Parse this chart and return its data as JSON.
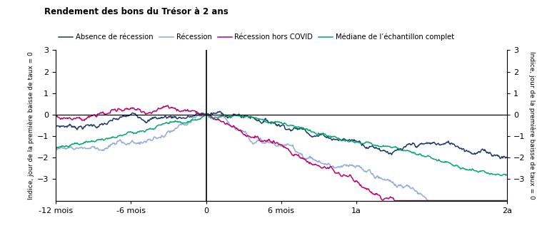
{
  "title": "Rendement des bons du Trésor à 2 ans",
  "ylabel_left": "Indice, jour de la première baisse de taux = 0",
  "ylabel_right": "Indice, jour de la première baisse de taux = 0",
  "xtick_labels": [
    "-12 mois",
    "-6 mois",
    "0",
    "6 mois",
    "1a",
    "2a"
  ],
  "xtick_positions": [
    -252,
    -126,
    0,
    126,
    252,
    504
  ],
  "ylim": [
    -4,
    3
  ],
  "yticks": [
    -3,
    -2,
    -1,
    0,
    1,
    2,
    3
  ],
  "vline_x": 0,
  "hline_y": 0,
  "legend": [
    {
      "label": "Absence de récession",
      "color": "#1a3a6b",
      "lw": 1.2
    },
    {
      "label": "Récession",
      "color": "#8faadc",
      "lw": 1.2
    },
    {
      "label": "Récession hors COVID",
      "color": "#c00070",
      "lw": 1.2
    },
    {
      "label": "Médiane de l’échantillon complet",
      "color": "#00a86b",
      "lw": 1.2
    }
  ],
  "seed": 7
}
